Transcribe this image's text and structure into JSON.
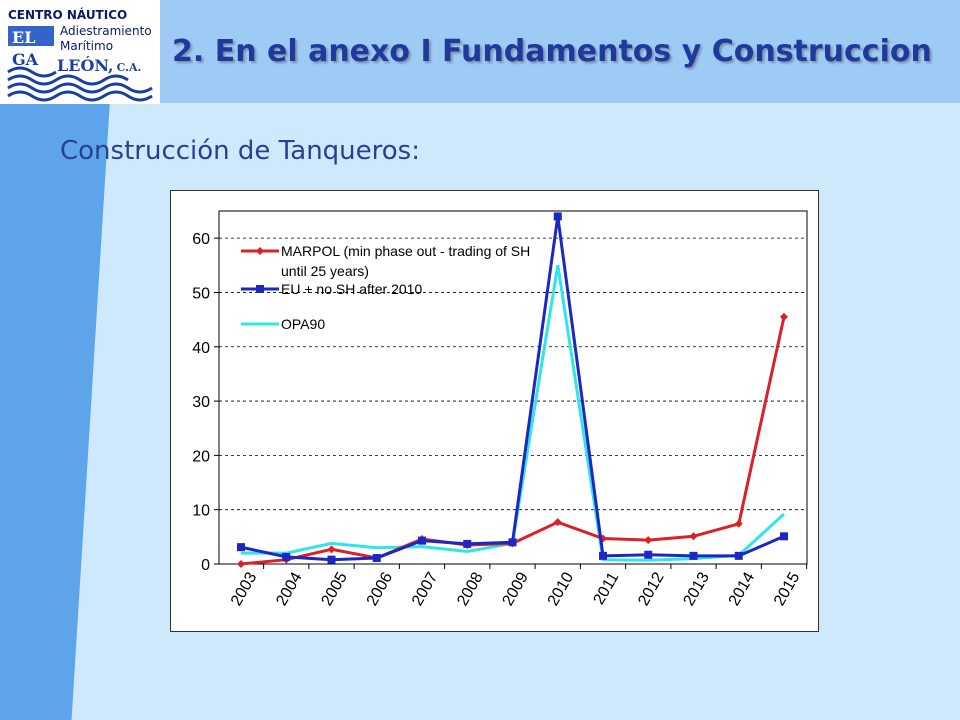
{
  "header": {
    "title": "2. En el anexo I Fundamentos y Construccion",
    "subtitle": "Construcción de Tanqueros:"
  },
  "logo": {
    "line1": "CENTRO NÁUTICO",
    "line2": "Adiestramiento",
    "line3": "Marítimo",
    "el": "EL",
    "ga": "GA",
    "leon": "LEÓN,",
    "ca": "C.A."
  },
  "chart_data": {
    "type": "line",
    "categories": [
      "2003",
      "2004",
      "2005",
      "2006",
      "2007",
      "2008",
      "2009",
      "2010",
      "2011",
      "2012",
      "2013",
      "2014",
      "2015"
    ],
    "ylim": [
      0,
      65
    ],
    "yticks": [
      0,
      10,
      20,
      30,
      40,
      50,
      60
    ],
    "grid": "horizontal dashed",
    "legend_position": "top-left",
    "series": [
      {
        "name": "MARPOL (min phase out - trading of SH until 25 years)",
        "color": "#dd1f26",
        "marker": "diamond",
        "x": [
          2003,
          2004,
          2005,
          2006,
          2007,
          2008,
          2009,
          2010,
          2011,
          2012,
          2013,
          2014,
          2015
        ],
        "values": [
          0.0,
          0.8,
          2.7,
          1.1,
          4.6,
          3.5,
          3.8,
          7.7,
          4.7,
          4.4,
          5.1,
          7.4,
          45.5
        ]
      },
      {
        "name": "EU + no SH after 2010",
        "color": "#1d27c2",
        "marker": "square",
        "x": [
          2003,
          2004,
          2005,
          2006,
          2007,
          2008,
          2009,
          2010,
          2011,
          2012,
          2013,
          2014,
          2015
        ],
        "values": [
          3.1,
          1.3,
          0.8,
          1.1,
          4.3,
          3.7,
          4.0,
          64.0,
          1.5,
          1.7,
          1.5,
          1.5,
          5.1
        ]
      },
      {
        "name": "OPA90",
        "color": "#2fe6e6",
        "marker": "none",
        "x": [
          2003,
          2004,
          2005,
          2006,
          2007,
          2008,
          2009,
          2010,
          2011,
          2012,
          2013,
          2014,
          2015
        ],
        "values": [
          2.0,
          2.0,
          3.8,
          3.0,
          3.2,
          2.3,
          3.8,
          55.0,
          0.8,
          0.7,
          1.0,
          1.6,
          9.2
        ]
      }
    ]
  }
}
